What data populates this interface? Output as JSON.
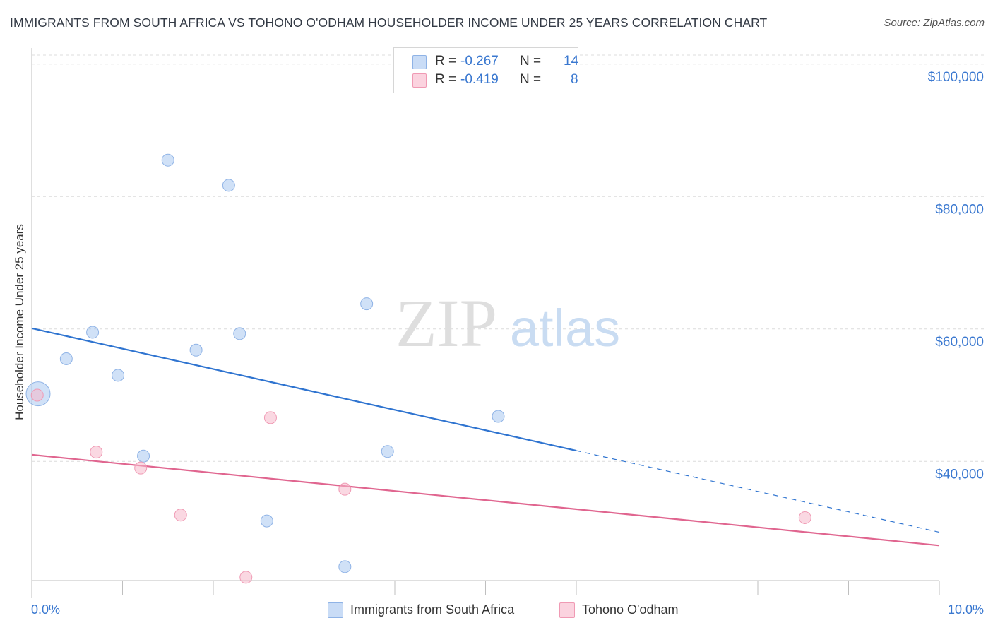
{
  "title": "IMMIGRANTS FROM SOUTH AFRICA VS TOHONO O'ODHAM HOUSEHOLDER INCOME UNDER 25 YEARS CORRELATION CHART",
  "source": "Source: ZipAtlas.com",
  "watermark": {
    "zip": "ZIP",
    "atlas": "atlas"
  },
  "legend": {
    "rows": [
      {
        "r_label": "R =",
        "r_value": "-0.267",
        "n_label": "N =",
        "n_value": "14",
        "color": "#a9c8f0"
      },
      {
        "r_label": "R =",
        "r_value": "-0.419",
        "n_label": "N =",
        "n_value": "8",
        "color": "#f6b8ca"
      }
    ]
  },
  "bottom_legend": [
    {
      "label": "Immigrants from South Africa",
      "color": "#a9c8f0"
    },
    {
      "label": "Tohono O'odham",
      "color": "#f6b8ca"
    }
  ],
  "chart_data": {
    "type": "scatter",
    "title": "IMMIGRANTS FROM SOUTH AFRICA VS TOHONO O'ODHAM HOUSEHOLDER INCOME UNDER 25 YEARS CORRELATION CHART",
    "xlabel": "",
    "ylabel": "Householder Income Under 25 years",
    "xlim": [
      0,
      10
    ],
    "ylim": [
      22000,
      102000
    ],
    "x_tick_labels": [
      "0.0%",
      "10.0%"
    ],
    "y_ticks": [
      40000,
      60000,
      80000,
      100000
    ],
    "y_tick_labels": [
      "$40,000",
      "$60,000",
      "$80,000",
      "$100,000"
    ],
    "grid": true,
    "legend_position": "top-center",
    "series": [
      {
        "name": "Immigrants from South Africa",
        "color": "#a9c8f0",
        "line_color": "#2f74d0",
        "points": [
          {
            "x": 0.07,
            "y": 50200,
            "large": true
          },
          {
            "x": 0.38,
            "y": 55500
          },
          {
            "x": 0.67,
            "y": 59500
          },
          {
            "x": 0.95,
            "y": 53000
          },
          {
            "x": 1.23,
            "y": 40800
          },
          {
            "x": 1.5,
            "y": 85500
          },
          {
            "x": 1.81,
            "y": 56800
          },
          {
            "x": 2.17,
            "y": 81700
          },
          {
            "x": 2.29,
            "y": 59300
          },
          {
            "x": 2.59,
            "y": 31000
          },
          {
            "x": 3.45,
            "y": 24100
          },
          {
            "x": 3.69,
            "y": 63800
          },
          {
            "x": 3.92,
            "y": 41500
          },
          {
            "x": 5.14,
            "y": 46800
          }
        ],
        "trend": {
          "x_start": 0,
          "y_start": 60100,
          "x_solid_end": 6.0,
          "x_end": 10,
          "y_end": 29300
        }
      },
      {
        "name": "Tohono O'odham",
        "color": "#f6b8ca",
        "line_color": "#e0658f",
        "points": [
          {
            "x": 0.06,
            "y": 50000
          },
          {
            "x": 0.71,
            "y": 41400
          },
          {
            "x": 1.2,
            "y": 39000
          },
          {
            "x": 1.64,
            "y": 31900
          },
          {
            "x": 2.36,
            "y": 22500
          },
          {
            "x": 2.63,
            "y": 46600
          },
          {
            "x": 3.45,
            "y": 35800
          },
          {
            "x": 8.52,
            "y": 31500
          }
        ],
        "trend": {
          "x_start": 0,
          "y_start": 41000,
          "x_end": 10,
          "y_end": 27300
        }
      }
    ]
  }
}
